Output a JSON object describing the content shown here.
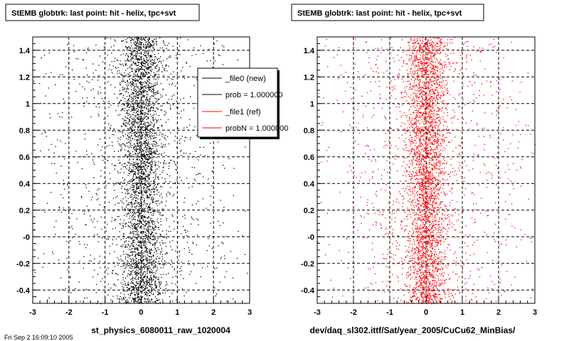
{
  "chart_data": [
    {
      "type": "scatter",
      "title": "StEMB globtrk: last point: hit - helix, tpc+svt",
      "xlabel": "st_physics_6080011_raw_1020004",
      "ylabel": "",
      "xlim": [
        -3,
        3
      ],
      "ylim": [
        -0.5,
        1.5
      ],
      "x_ticks": [
        "-3",
        "-2",
        "-1",
        "0",
        "1",
        "2",
        "3"
      ],
      "y_ticks": [
        "-0.4",
        "-0.2",
        "-0",
        "0.2",
        "0.4",
        "0.6",
        "0.8",
        "1",
        "1.2",
        "1.4"
      ],
      "grid": true,
      "color": "#000000",
      "series": [
        {
          "name": "_file0 (new)",
          "distribution": {
            "x_center": 0.0,
            "x_core_sigma": 0.28,
            "x_wide_sigma": 1.0,
            "y_min": -0.5,
            "y_max": 1.5
          },
          "points": [
            [
              -0.05,
              1.42
            ],
            [
              0.1,
              1.3
            ],
            [
              -0.2,
              1.1
            ],
            [
              0.02,
              0.95
            ],
            [
              0.15,
              0.82
            ],
            [
              -0.1,
              0.66
            ],
            [
              0.05,
              0.48
            ],
            [
              -0.3,
              0.3
            ],
            [
              0.2,
              0.12
            ],
            [
              -0.02,
              -0.05
            ],
            [
              0.1,
              -0.22
            ],
            [
              -0.15,
              -0.38
            ],
            [
              -1.2,
              1.0
            ],
            [
              1.4,
              0.6
            ],
            [
              -2.1,
              0.2
            ],
            [
              2.3,
              -0.3
            ]
          ]
        }
      ],
      "legend": {
        "placement": "top-right",
        "entries": [
          {
            "label": "_file0 (new)",
            "color": "#000000"
          },
          {
            "label": "prob = 1.000000",
            "color": "#000000"
          },
          {
            "label": "_file1 (ref)",
            "color": "#ff0000"
          },
          {
            "label": "probN = 1.000000",
            "color": "#ff0000"
          }
        ]
      }
    },
    {
      "type": "scatter",
      "title": "StEMB globtrk: last point: hit - helix, tpc+svt",
      "xlabel": "dev/daq_sl302.ittf/Sat/year_2005/CuCu62_MinBias/",
      "ylabel": "",
      "xlim": [
        -3,
        3
      ],
      "ylim": [
        -0.5,
        1.5
      ],
      "x_ticks": [
        "-3",
        "-2",
        "-1",
        "0",
        "1",
        "2",
        "3"
      ],
      "y_ticks": [
        "-0.4",
        "-0.2",
        "-0",
        "0.2",
        "0.4",
        "0.6",
        "0.8",
        "1",
        "1.2",
        "1.4"
      ],
      "grid": true,
      "color": "#ff0000",
      "series": [
        {
          "name": "_file1 (ref)",
          "distribution": {
            "x_center": 0.0,
            "x_core_sigma": 0.28,
            "x_wide_sigma": 1.0,
            "y_min": -0.5,
            "y_max": 1.5
          },
          "points": [
            [
              0.0,
              1.45
            ],
            [
              -0.1,
              1.25
            ],
            [
              0.12,
              1.05
            ],
            [
              -0.05,
              0.9
            ],
            [
              0.2,
              0.75
            ],
            [
              -0.15,
              0.58
            ],
            [
              0.03,
              0.42
            ],
            [
              -0.25,
              0.25
            ],
            [
              0.18,
              0.08
            ],
            [
              0.0,
              -0.1
            ],
            [
              -0.08,
              -0.28
            ],
            [
              0.1,
              -0.42
            ],
            [
              -1.5,
              0.9
            ],
            [
              1.2,
              0.4
            ],
            [
              -2.4,
              -0.1
            ],
            [
              2.0,
              1.2
            ]
          ]
        }
      ]
    }
  ],
  "footer": {
    "left_text": "Fri Sep  2 16:09:10 2005"
  }
}
